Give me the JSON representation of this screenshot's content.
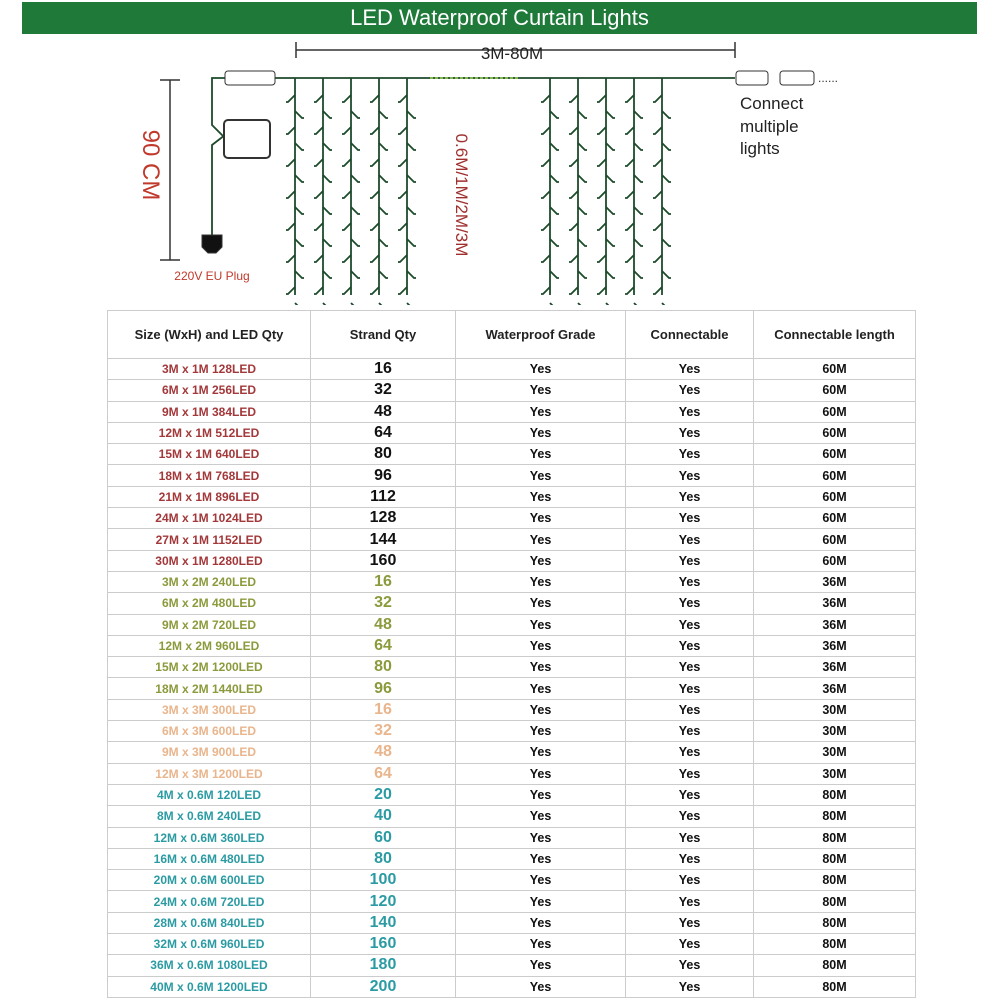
{
  "header": {
    "title": "LED Waterproof Curtain Lights"
  },
  "diagram": {
    "width_label": "3M-80M",
    "height_label": "90 CM",
    "drop_label": "0.6M/1M/2M/3M",
    "plug_label": "220V EU Plug",
    "connect_label": [
      "Connect",
      "multiple",
      "lights"
    ]
  },
  "table": {
    "columns": [
      "Size (WxH) and LED Qty",
      "Strand Qty",
      "Waterproof Grade",
      "Connectable",
      "Connectable length"
    ],
    "groups": [
      {
        "color": "#a3383a",
        "rows": [
          [
            "3M x 1M 128LED",
            "16",
            "Yes",
            "Yes",
            "60M"
          ],
          [
            "6M x 1M 256LED",
            "32",
            "Yes",
            "Yes",
            "60M"
          ],
          [
            "9M x 1M 384LED",
            "48",
            "Yes",
            "Yes",
            "60M"
          ],
          [
            "12M x 1M 512LED",
            "64",
            "Yes",
            "Yes",
            "60M"
          ],
          [
            "15M x 1M 640LED",
            "80",
            "Yes",
            "Yes",
            "60M"
          ],
          [
            "18M x 1M 768LED",
            "96",
            "Yes",
            "Yes",
            "60M"
          ],
          [
            "21M x 1M 896LED",
            "112",
            "Yes",
            "Yes",
            "60M"
          ],
          [
            "24M x 1M 1024LED",
            "128",
            "Yes",
            "Yes",
            "60M"
          ],
          [
            "27M x 1M 1152LED",
            "144",
            "Yes",
            "Yes",
            "60M"
          ],
          [
            "30M x 1M 1280LED",
            "160",
            "Yes",
            "Yes",
            "60M"
          ]
        ]
      },
      {
        "color": "#8c9a3c",
        "rows": [
          [
            "3M x 2M 240LED",
            "16",
            "Yes",
            "Yes",
            "36M"
          ],
          [
            "6M x 2M 480LED",
            "32",
            "Yes",
            "Yes",
            "36M"
          ],
          [
            "9M x 2M 720LED",
            "48",
            "Yes",
            "Yes",
            "36M"
          ],
          [
            "12M x 2M 960LED",
            "64",
            "Yes",
            "Yes",
            "36M"
          ],
          [
            "15M x 2M 1200LED",
            "80",
            "Yes",
            "Yes",
            "36M"
          ],
          [
            "18M x 2M 1440LED",
            "96",
            "Yes",
            "Yes",
            "36M"
          ]
        ]
      },
      {
        "color": "#e9b58c",
        "rows": [
          [
            "3M x 3M 300LED",
            "16",
            "Yes",
            "Yes",
            "30M"
          ],
          [
            "6M x 3M 600LED",
            "32",
            "Yes",
            "Yes",
            "30M"
          ],
          [
            "9M x 3M 900LED",
            "48",
            "Yes",
            "Yes",
            "30M"
          ],
          [
            "12M x 3M 1200LED",
            "64",
            "Yes",
            "Yes",
            "30M"
          ]
        ]
      },
      {
        "color": "#2b9ba3",
        "rows": [
          [
            "4M x 0.6M 120LED",
            "20",
            "Yes",
            "Yes",
            "80M"
          ],
          [
            "8M x 0.6M 240LED",
            "40",
            "Yes",
            "Yes",
            "80M"
          ],
          [
            "12M x 0.6M 360LED",
            "60",
            "Yes",
            "Yes",
            "80M"
          ],
          [
            "16M x 0.6M 480LED",
            "80",
            "Yes",
            "Yes",
            "80M"
          ],
          [
            "20M x 0.6M 600LED",
            "100",
            "Yes",
            "Yes",
            "80M"
          ],
          [
            "24M x 0.6M 720LED",
            "120",
            "Yes",
            "Yes",
            "80M"
          ],
          [
            "28M x 0.6M 840LED",
            "140",
            "Yes",
            "Yes",
            "80M"
          ],
          [
            "32M x 0.6M 960LED",
            "160",
            "Yes",
            "Yes",
            "80M"
          ],
          [
            "36M x 0.6M 1080LED",
            "180",
            "Yes",
            "Yes",
            "80M"
          ],
          [
            "40M x 0.6M 1200LED",
            "200",
            "Yes",
            "Yes",
            "80M"
          ]
        ]
      }
    ]
  }
}
